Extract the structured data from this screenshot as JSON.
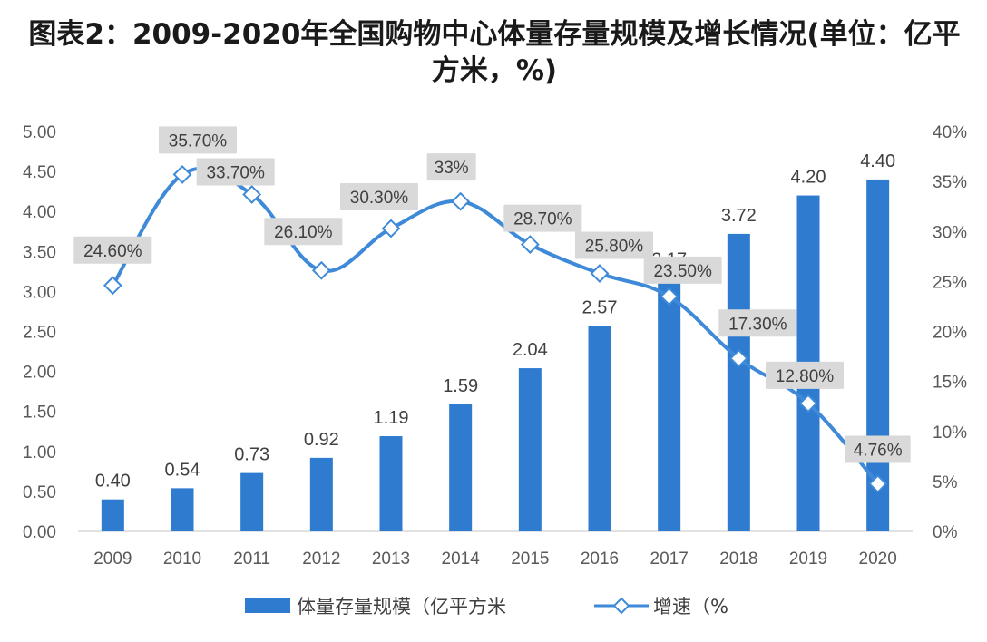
{
  "title": "图表2：2009-2020年全国购物中心体量存量规模及增长情况(单位：亿平方米，%)",
  "chart_data": {
    "type": "bar+line",
    "categories": [
      "2009",
      "2010",
      "2011",
      "2012",
      "2013",
      "2014",
      "2015",
      "2016",
      "2017",
      "2018",
      "2019",
      "2020"
    ],
    "series": [
      {
        "name": "体量存量规模（亿平方米",
        "type": "bar",
        "axis": "left",
        "values": [
          0.4,
          0.54,
          0.73,
          0.92,
          1.19,
          1.59,
          2.04,
          2.57,
          3.17,
          3.72,
          4.2,
          4.4
        ],
        "labels": [
          "0.40",
          "0.54",
          "0.73",
          "0.92",
          "1.19",
          "1.59",
          "2.04",
          "2.57",
          "3.17",
          "3.72",
          "4.20",
          "4.40"
        ]
      },
      {
        "name": "增速（%",
        "type": "line",
        "axis": "right",
        "values": [
          24.6,
          35.7,
          33.7,
          26.1,
          30.3,
          33.0,
          28.7,
          25.8,
          23.5,
          17.3,
          12.8,
          4.76
        ],
        "labels": [
          "24.60%",
          "35.70%",
          "33.70%",
          "26.10%",
          "30.30%",
          "33%",
          "28.70%",
          "25.80%",
          "23.50%",
          "17.30%",
          "12.80%",
          "4.76%"
        ]
      }
    ],
    "y_left": {
      "min": 0,
      "max": 5,
      "step": 0.5,
      "ticks": [
        "0.00",
        "0.50",
        "1.00",
        "1.50",
        "2.00",
        "2.50",
        "3.00",
        "3.50",
        "4.00",
        "4.50",
        "5.00"
      ]
    },
    "y_right": {
      "min": 0,
      "max": 40,
      "step": 5,
      "ticks": [
        "0%",
        "5%",
        "10%",
        "15%",
        "20%",
        "25%",
        "30%",
        "35%",
        "40%"
      ]
    },
    "grid": false,
    "legend_position": "bottom",
    "bar_color": "#2e7bd0",
    "line_color": "#3f8ad8",
    "label_box_color": "#d9d9d9"
  }
}
